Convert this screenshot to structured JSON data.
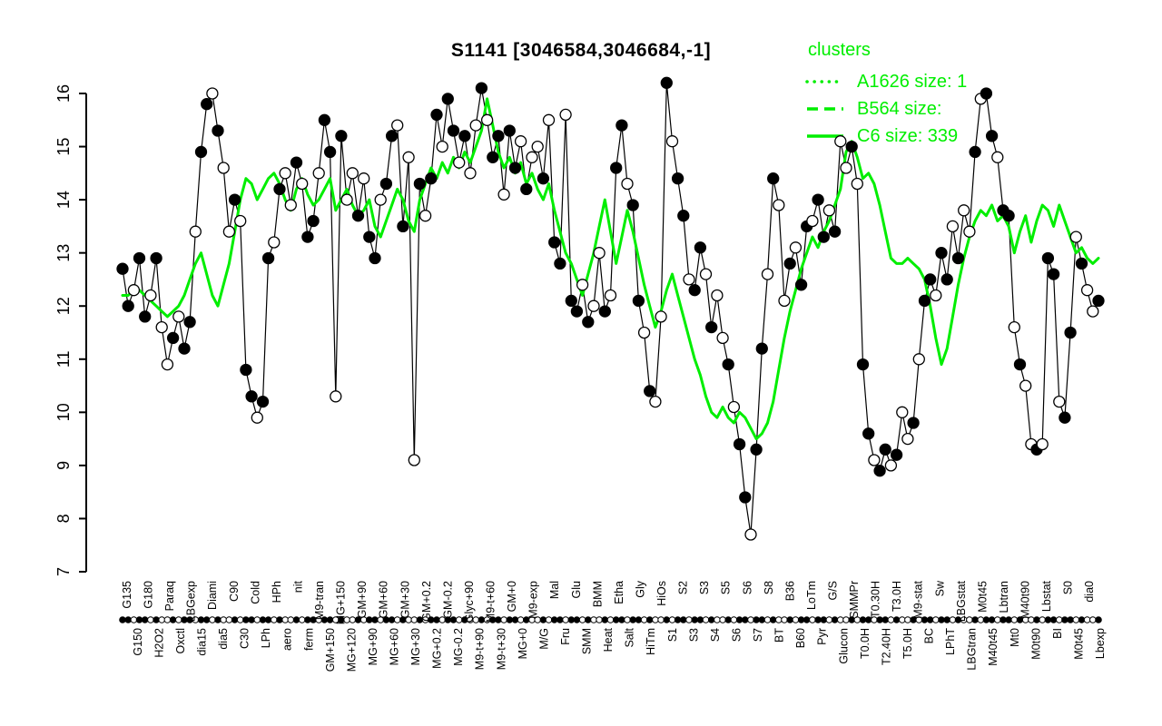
{
  "title": "S1141 [3046584,3046684,-1]",
  "legend": {
    "title": "clusters",
    "color": "#00EE00",
    "entries": [
      {
        "label": "A1626 size: 1",
        "style": "dotted"
      },
      {
        "label": "B564 size:",
        "style": "dashed"
      },
      {
        "label": "C6 size: 339",
        "style": "solid"
      }
    ]
  },
  "chart_data": {
    "type": "line",
    "title": "S1141 [3046584,3046684,-1]",
    "ylim": [
      7,
      16
    ],
    "yticks": [
      7,
      8,
      9,
      10,
      11,
      12,
      13,
      14,
      15,
      16
    ],
    "grid": false,
    "legend_position": "top-right",
    "x_labels": [
      "G135",
      "G150",
      "G180",
      "H2O2",
      "Paraq",
      "Oxctl",
      "LBGexp",
      "dia15",
      "Diami",
      "dia5",
      "C90",
      "C30",
      "Cold",
      "LPh",
      "HPh",
      "aero",
      "nit",
      "ferm",
      "M9-tran",
      "GM+150",
      "MG+150",
      "MG+120",
      "GM+90",
      "MG+90",
      "GM+60",
      "MG+60",
      "GM+30",
      "MG+30",
      "GM+0.2",
      "MG+0.2",
      "GM-0.2",
      "MG-0.2",
      "Glyc+90",
      "M9-t+90",
      "M9-t+60",
      "M9-t+30",
      "GM+0",
      "MG+0",
      "M9-exp",
      "M/G",
      "Mal",
      "Fru",
      "Glu",
      "SMM",
      "BMM",
      "Heat",
      "Etha",
      "Salt",
      "Gly",
      "HiTm",
      "HiOs",
      "S1",
      "S2",
      "S3",
      "S3",
      "S4",
      "S5",
      "S6",
      "S6",
      "S7",
      "S8",
      "BT",
      "B36",
      "B60",
      "LoTm",
      "Pyr",
      "G/S",
      "Glucon",
      "SMMPr",
      "T0.0H",
      "T0.30H",
      "T2.40H",
      "T3.0H",
      "T5.0H",
      "M9-stat",
      "BC",
      "Sw",
      "LPhT",
      "LBGstat",
      "LBGtran",
      "M0t45",
      "M40t45",
      "Lbtran",
      "Mt0",
      "M40t90",
      "M0t90",
      "Lbstat",
      "BI",
      "S0",
      "M0t45",
      "dia0",
      "Lbexp"
    ],
    "series": [
      {
        "name": "S1141 expression profile",
        "color": "#000000",
        "style": "solid-with-markers",
        "values": [
          12.7,
          12.0,
          12.3,
          12.9,
          11.8,
          12.2,
          12.9,
          11.6,
          10.9,
          11.4,
          11.8,
          11.2,
          11.7,
          13.4,
          14.9,
          15.8,
          16.0,
          15.3,
          14.6,
          13.4,
          14.0,
          13.6,
          10.8,
          10.3,
          9.9,
          10.2,
          12.9,
          13.2,
          14.2,
          14.5,
          13.9,
          14.7,
          14.3,
          13.3,
          13.6,
          14.5,
          15.5,
          14.9,
          10.3,
          15.2,
          14.0,
          14.5,
          13.7,
          14.4,
          13.3,
          12.9,
          14.0,
          14.3,
          15.2,
          15.4,
          13.5,
          14.8,
          9.1,
          14.3,
          13.7,
          14.4,
          15.6,
          15.0,
          15.9,
          15.3,
          14.7,
          15.2,
          14.5,
          15.4,
          16.1,
          15.5,
          14.8,
          15.2,
          14.1,
          15.3,
          14.6,
          15.1,
          14.2,
          14.8,
          15.0,
          14.4,
          15.5,
          13.2,
          12.8,
          15.6,
          12.1,
          11.9,
          12.4,
          11.7,
          12.0,
          13.0,
          11.9,
          12.2,
          14.6,
          15.4,
          14.3,
          13.9,
          12.1,
          11.5,
          10.4,
          10.2,
          11.8,
          16.2,
          15.1,
          14.4,
          13.7,
          12.5,
          12.3,
          13.1,
          12.6,
          11.6,
          12.2,
          11.4,
          10.9,
          10.1,
          9.4,
          8.4,
          7.7,
          9.3,
          11.2,
          12.6,
          14.4,
          13.9,
          12.1,
          12.8,
          13.1,
          12.4,
          13.5,
          13.6,
          14.0,
          13.3,
          13.8,
          13.4,
          15.1,
          14.6,
          15.0,
          14.3,
          10.9,
          9.6,
          9.1,
          8.9,
          9.3,
          9.0,
          9.2,
          10.0,
          9.5,
          9.8,
          11.0,
          12.1,
          12.5,
          12.2,
          13.0,
          12.5,
          13.5,
          12.9,
          13.8,
          13.4,
          14.9,
          15.9,
          16.0,
          15.2,
          14.8,
          13.8,
          13.7,
          11.6,
          10.9,
          10.5,
          9.4,
          9.3,
          9.4,
          12.9,
          12.6,
          10.2,
          9.9,
          11.5,
          13.3,
          12.8,
          12.3,
          11.9,
          12.1
        ]
      },
      {
        "name": "C6 cluster mean",
        "color": "#00EE00",
        "style": "solid",
        "values": [
          12.2,
          12.2,
          12.3,
          12.3,
          12.2,
          12.1,
          12.0,
          11.9,
          11.8,
          11.9,
          12.0,
          12.2,
          12.5,
          12.8,
          13.0,
          12.6,
          12.2,
          12.0,
          12.4,
          12.8,
          13.4,
          14.0,
          14.4,
          14.3,
          14.0,
          14.2,
          14.4,
          14.5,
          14.3,
          14.0,
          13.8,
          14.2,
          14.4,
          14.1,
          13.9,
          14.0,
          14.2,
          14.4,
          13.8,
          14.0,
          14.2,
          13.9,
          13.7,
          13.8,
          14.0,
          13.5,
          13.3,
          13.6,
          13.9,
          14.2,
          14.0,
          13.6,
          13.4,
          14.0,
          14.3,
          14.6,
          14.4,
          14.7,
          14.5,
          14.8,
          14.6,
          14.9,
          14.7,
          15.0,
          15.3,
          15.9,
          15.4,
          14.9,
          14.6,
          14.8,
          14.5,
          14.7,
          14.3,
          14.5,
          14.2,
          14.0,
          14.3,
          13.8,
          13.4,
          13.0,
          12.8,
          12.5,
          12.2,
          12.6,
          13.0,
          13.5,
          14.0,
          13.4,
          12.8,
          13.3,
          13.8,
          13.4,
          12.9,
          12.4,
          12.0,
          11.6,
          11.9,
          12.3,
          12.6,
          12.2,
          11.8,
          11.4,
          11.0,
          10.7,
          10.3,
          10.0,
          9.9,
          10.1,
          9.9,
          9.8,
          10.0,
          9.9,
          9.7,
          9.5,
          9.6,
          9.8,
          10.2,
          10.8,
          11.4,
          11.9,
          12.3,
          12.7,
          13.0,
          13.3,
          13.1,
          13.4,
          13.6,
          13.9,
          14.2,
          14.9,
          15.1,
          14.8,
          14.4,
          14.5,
          14.3,
          13.9,
          13.4,
          12.9,
          12.8,
          12.8,
          12.9,
          12.8,
          12.7,
          12.5,
          12.0,
          11.4,
          10.9,
          11.2,
          11.8,
          12.4,
          12.9,
          13.3,
          13.6,
          13.8,
          13.7,
          13.9,
          13.6,
          13.7,
          13.5,
          13.0,
          13.4,
          13.7,
          13.2,
          13.6,
          13.9,
          13.8,
          13.5,
          13.9,
          13.6,
          13.3,
          13.0,
          13.1,
          12.9,
          12.8,
          12.9
        ]
      }
    ]
  }
}
